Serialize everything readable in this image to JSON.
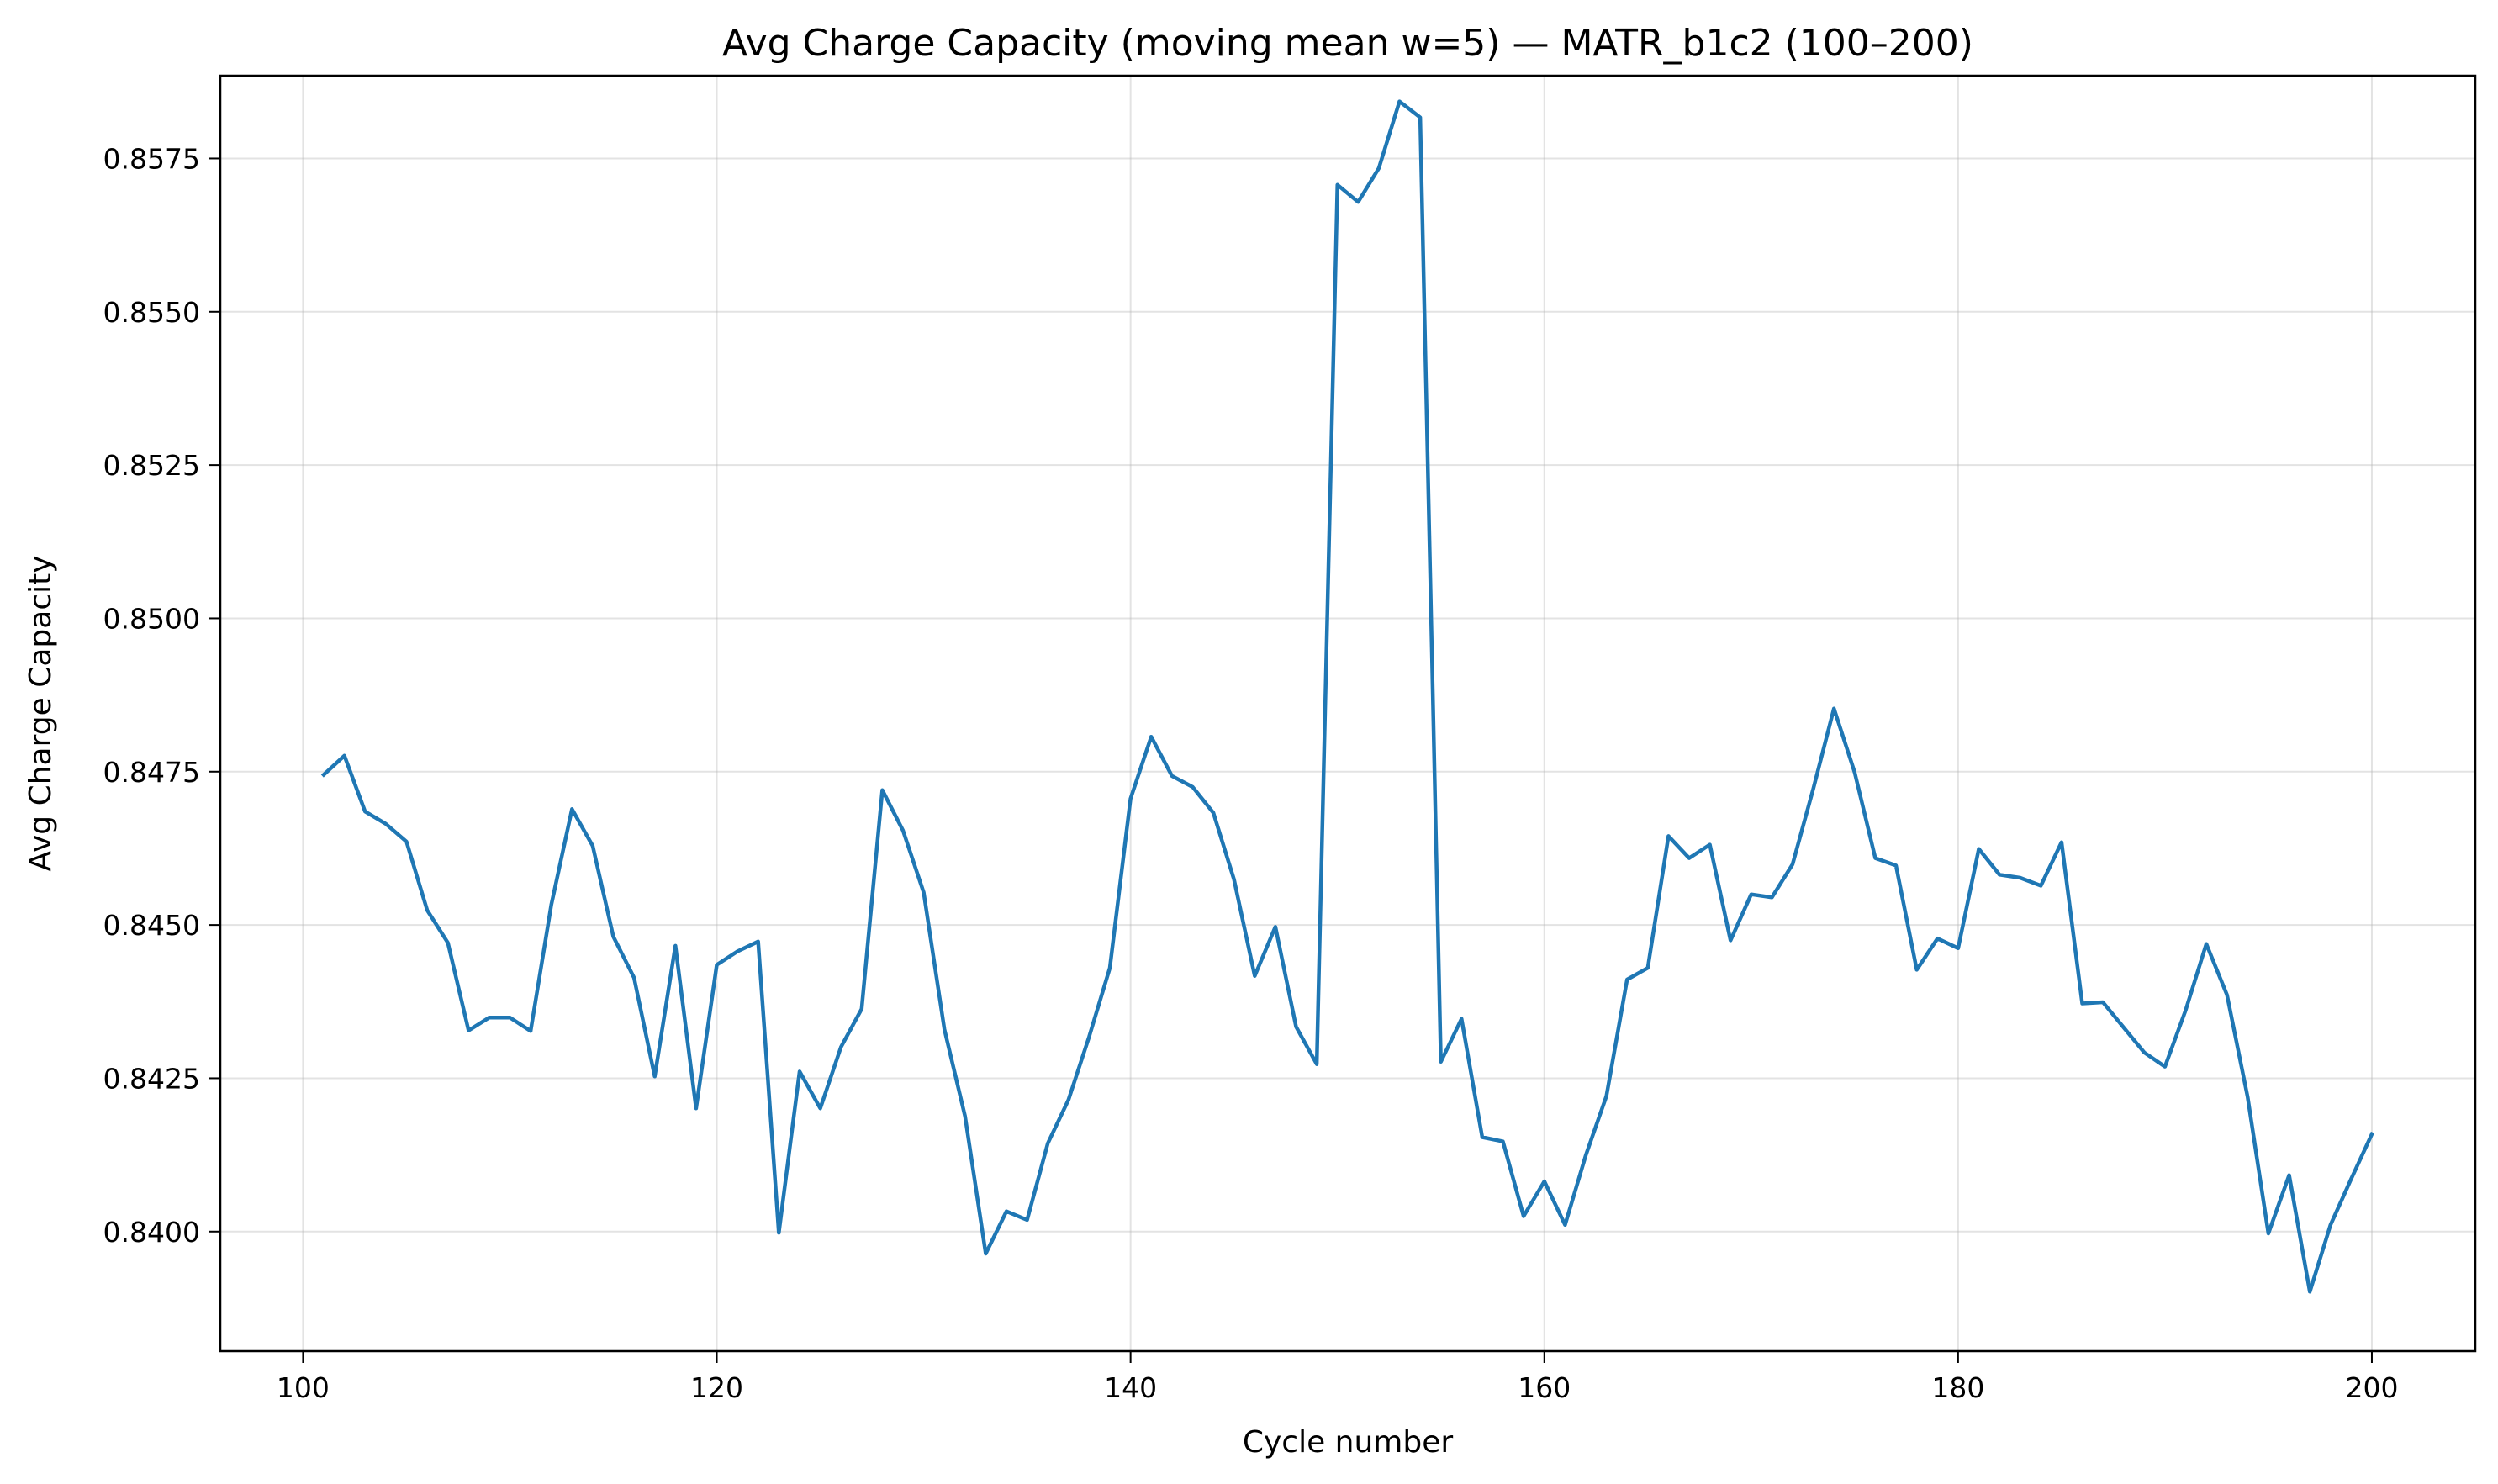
{
  "chart_data": {
    "type": "line",
    "title": "Avg Charge Capacity (moving mean w=5) — MATR_b1c2 (100–200)",
    "xlabel": "Cycle number",
    "ylabel": "Avg Charge Capacity",
    "xlim": [
      96,
      205
    ],
    "ylim": [
      0.83805,
      0.85885
    ],
    "xticks": [
      100,
      120,
      140,
      160,
      180,
      200
    ],
    "xtick_labels": [
      "100",
      "120",
      "140",
      "160",
      "180",
      "200"
    ],
    "yticks": [
      0.84,
      0.8425,
      0.845,
      0.8475,
      0.85,
      0.8525,
      0.855,
      0.8575
    ],
    "ytick_labels": [
      "0.8400",
      "0.8425",
      "0.8450",
      "0.8475",
      "0.8500",
      "0.8525",
      "0.8550",
      "0.8575"
    ],
    "grid": true,
    "color": "#1f77b4",
    "series": [
      {
        "x": [
          101,
          102,
          103,
          104,
          105,
          106,
          107,
          108,
          109,
          110,
          111,
          112,
          113,
          114,
          115,
          116,
          117,
          118,
          119,
          120,
          121,
          122,
          123,
          124,
          125,
          126,
          127,
          128,
          129,
          130,
          131,
          132,
          133,
          134,
          135,
          136,
          137,
          138,
          139,
          140,
          141,
          142,
          143,
          144,
          145,
          146,
          147,
          148,
          149,
          150,
          151,
          152,
          153,
          154,
          155,
          156,
          157,
          158,
          159,
          160,
          161,
          162,
          163,
          164,
          165,
          166,
          167,
          168,
          169,
          170,
          171,
          172,
          173,
          174,
          175,
          176,
          177,
          178,
          179,
          180,
          181,
          182,
          183,
          184,
          185,
          186,
          187,
          188,
          189,
          190,
          191,
          192,
          193,
          194,
          195,
          196,
          197,
          198,
          199,
          200
        ],
        "values": [
          0.84745,
          0.84776,
          0.84685,
          0.84665,
          0.84636,
          0.84524,
          0.84471,
          0.84328,
          0.84349,
          0.84349,
          0.84327,
          0.84533,
          0.84689,
          0.84629,
          0.84481,
          0.84414,
          0.84253,
          0.84466,
          0.84201,
          0.84435,
          0.84457,
          0.84473,
          0.83998,
          0.84261,
          0.84201,
          0.84301,
          0.84363,
          0.8472,
          0.84654,
          0.84553,
          0.8433,
          0.84188,
          0.83964,
          0.84033,
          0.84019,
          0.84144,
          0.84215,
          0.84318,
          0.8443,
          0.84706,
          0.84807,
          0.84743,
          0.84725,
          0.84683,
          0.84574,
          0.84417,
          0.84497,
          0.84334,
          0.84273,
          0.85707,
          0.85679,
          0.85734,
          0.85843,
          0.85817,
          0.84277,
          0.84347,
          0.84154,
          0.84147,
          0.84025,
          0.84082,
          0.84011,
          0.84124,
          0.84221,
          0.84411,
          0.8443,
          0.84645,
          0.84609,
          0.84631,
          0.84475,
          0.8455,
          0.84545,
          0.84599,
          0.84722,
          0.84853,
          0.84749,
          0.84609,
          0.84597,
          0.84427,
          0.84478,
          0.84462,
          0.84624,
          0.84582,
          0.84577,
          0.84564,
          0.84635,
          0.84372,
          0.84374,
          0.84333,
          0.84292,
          0.84269,
          0.84361,
          0.84469,
          0.84386,
          0.84219,
          0.83997,
          0.84092,
          0.83902,
          0.84011,
          0.84086,
          0.84159
        ]
      }
    ]
  }
}
